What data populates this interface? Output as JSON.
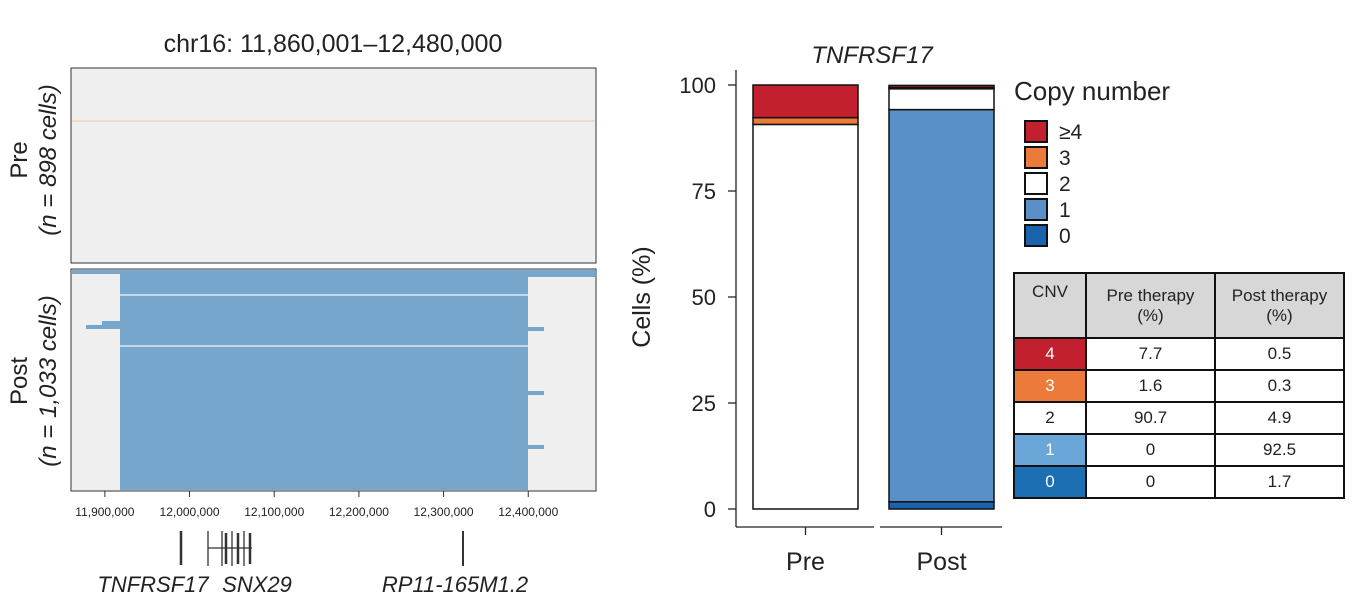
{
  "colors": {
    "cn_ge4": "#c3202f",
    "cn_3": "#ec7a3b",
    "cn_2": "#ffffff",
    "cn_1": "#5a8fc7",
    "cn_0": "#1c63ad",
    "heatmap_bg": "#efefef",
    "heatmap_post": "#77a6cc",
    "table_cn_1": "#6aa6d8",
    "table_cn_0": "#1d6fb3"
  },
  "heatmap": {
    "title": "chr16: 11,860,001–12,480,000",
    "pre_label": "Pre",
    "pre_n": "(n = 898 cells)",
    "post_label": "Post",
    "post_n": "(n = 1,033 cells)",
    "x_ticks": [
      "11,900,000",
      "12,000,000",
      "12,100,000",
      "12,200,000",
      "12,300,000",
      "12,400,000"
    ],
    "genes": [
      "TNFRSF17",
      "SNX29",
      "RP11-165M1.2"
    ]
  },
  "chart_data": [
    {
      "type": "bar",
      "stacked": true,
      "title": "TNFRSF17",
      "ylabel": "Cells (%)",
      "ylim": [
        0,
        100
      ],
      "y_ticks": [
        0,
        25,
        50,
        75,
        100
      ],
      "categories": [
        "Pre",
        "Post"
      ],
      "series": [
        {
          "name": "0",
          "values": [
            0,
            1.7
          ]
        },
        {
          "name": "1",
          "values": [
            0,
            92.5
          ]
        },
        {
          "name": "2",
          "values": [
            90.7,
            4.9
          ]
        },
        {
          "name": "3",
          "values": [
            1.6,
            0.3
          ]
        },
        {
          "name": "≥4",
          "values": [
            7.7,
            0.5
          ]
        }
      ],
      "legend": {
        "title": "Copy number",
        "entries": [
          "≥4",
          "3",
          "2",
          "1",
          "0"
        ],
        "position": "right"
      }
    },
    {
      "type": "table",
      "headers": [
        "CNV",
        "Pre therapy",
        "(%)",
        "Post therapy",
        "(%)"
      ],
      "rows": [
        {
          "cnv": "4",
          "pre": "7.7",
          "post": "0.5"
        },
        {
          "cnv": "3",
          "pre": "1.6",
          "post": "0.3"
        },
        {
          "cnv": "2",
          "pre": "90.7",
          "post": "4.9"
        },
        {
          "cnv": "1",
          "pre": "0",
          "post": "92.5"
        },
        {
          "cnv": "0",
          "pre": "0",
          "post": "1.7"
        }
      ]
    }
  ]
}
